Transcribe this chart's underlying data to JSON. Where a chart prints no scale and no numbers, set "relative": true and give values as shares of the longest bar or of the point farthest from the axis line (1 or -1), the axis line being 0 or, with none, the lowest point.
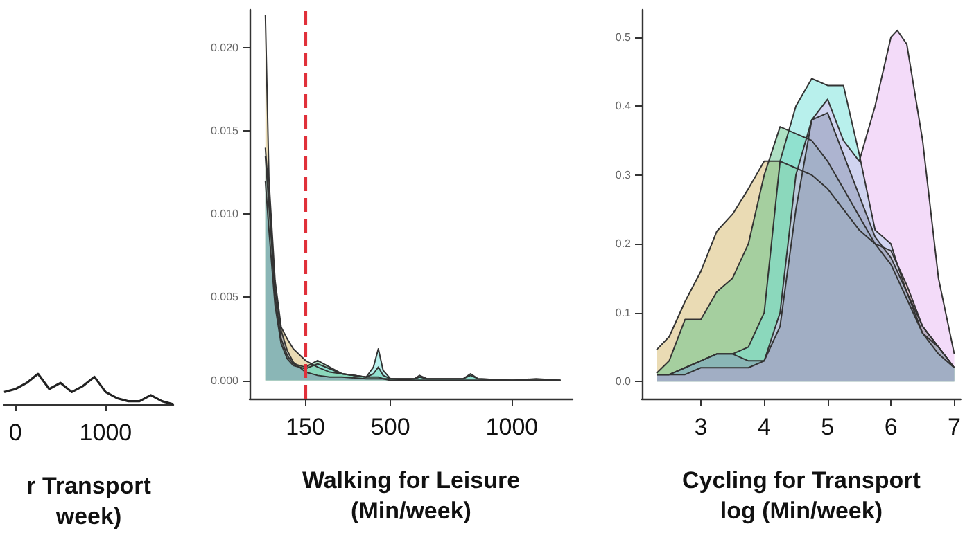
{
  "chart_data": [
    {
      "type": "line",
      "relative": true,
      "xlabel": "r Transport\nweek)",
      "tick_labels": "x",
      "categories": [
        null,
        "0",
        null,
        null,
        null,
        null,
        null,
        null,
        null,
        "1000",
        null,
        null,
        null,
        null,
        null,
        null
      ],
      "series": [
        {
          "color": "#222222",
          "values": [
            0.4,
            0.5,
            0.7,
            1.0,
            0.5,
            0.7,
            0.4,
            0.6,
            0.9,
            0.4,
            0.2,
            0.1,
            0.1,
            0.3,
            0.1,
            0
          ]
        }
      ]
    },
    {
      "type": "area",
      "xlabel": "Walking for Leisure\n(Min/week)",
      "xlim": [
        -80,
        1250
      ],
      "xticks": [
        150,
        500,
        1000
      ],
      "ylim": [
        -0.0011,
        0.0223
      ],
      "yticks": [
        {
          "value": 0,
          "label": "0.000"
        },
        {
          "value": 0.005,
          "label": "0.005"
        },
        {
          "value": 0.01,
          "label": "0.010"
        },
        {
          "value": 0.015,
          "label": "0.015"
        },
        {
          "value": 0.02,
          "label": "0.020"
        }
      ],
      "x": [
        -15,
        0,
        25,
        50,
        75,
        100,
        150,
        200,
        250,
        300,
        400,
        430,
        450,
        470,
        500,
        600,
        620,
        650,
        800,
        830,
        860,
        1000,
        1100,
        1200
      ],
      "series": [
        {
          "color": "#d6b86a",
          "values": [
            0.022,
            0.012,
            0.006,
            0.0032,
            0.0025,
            0.0019,
            0.0012,
            0.0008,
            0.0005,
            0.0004,
            0.0002,
            0.0002,
            0.0002,
            0.0001,
            0.0001,
            0,
            0,
            0,
            0,
            0,
            0,
            0,
            0.0001,
            0
          ]
        },
        {
          "color": "#5fc48a",
          "values": [
            0.014,
            0.011,
            0.005,
            0.0025,
            0.0015,
            0.001,
            0.0008,
            0.0012,
            0.0008,
            0.0004,
            0.0002,
            0.0004,
            0.0008,
            0.0003,
            0.0001,
            0.0001,
            0.0002,
            0.0001,
            0.0001,
            0.0003,
            0.0001,
            0,
            0,
            0
          ]
        },
        {
          "color": "#72e2da",
          "values": [
            0.012,
            0.009,
            0.0045,
            0.0022,
            0.0013,
            0.0009,
            0.0007,
            0.001,
            0.0007,
            0.0004,
            0.0002,
            0.0008,
            0.0019,
            0.0006,
            0.0001,
            0.0001,
            0.0003,
            0.0001,
            0.0001,
            0.0004,
            0.0001,
            0,
            0,
            0
          ]
        },
        {
          "color": "#8a94b0",
          "values": [
            0.0135,
            0.0105,
            0.0055,
            0.003,
            0.0018,
            0.0011,
            0.0005,
            0.0003,
            0.0002,
            0.0002,
            0.0001,
            0.0001,
            0.0001,
            0.0001,
            0,
            0,
            0,
            0,
            0,
            0,
            0,
            0,
            0,
            0
          ]
        }
      ],
      "ref_lines": [
        {
          "axis": "x",
          "value": 150,
          "color": "#e0303a",
          "line_style": "dashed"
        }
      ]
    },
    {
      "type": "area",
      "xlabel": "Cycling for Transport\nlog (Min/week)",
      "xlim": [
        2.07,
        7.1
      ],
      "xticks": [
        3,
        4,
        5,
        6,
        7
      ],
      "ylim": [
        -0.025,
        0.54
      ],
      "yticks": [
        {
          "value": 0,
          "label": "0.0"
        },
        {
          "value": 0.1,
          "label": "0.1"
        },
        {
          "value": 0.2,
          "label": "0.2"
        },
        {
          "value": 0.3,
          "label": "0.3"
        },
        {
          "value": 0.4,
          "label": "0.4"
        },
        {
          "value": 0.5,
          "label": "0.5"
        }
      ],
      "x": [
        2.3,
        2.5,
        2.75,
        3,
        3.25,
        3.5,
        3.75,
        4,
        4.25,
        4.5,
        4.75,
        5,
        5.25,
        5.5,
        5.75,
        6,
        6.1,
        6.25,
        6.5,
        6.75,
        7
      ],
      "series": [
        {
          "color": "#d6b86a",
          "values": [
            0.046,
            0.065,
            0.116,
            0.16,
            0.218,
            0.243,
            0.28,
            0.32,
            0.32,
            0.31,
            0.3,
            0.28,
            0.25,
            0.22,
            0.2,
            0.19,
            0.17,
            0.14,
            0.08,
            0.05,
            0.02
          ]
        },
        {
          "color": "#5fc48a",
          "values": [
            0.012,
            0.03,
            0.09,
            0.09,
            0.13,
            0.15,
            0.2,
            0.3,
            0.37,
            0.36,
            0.35,
            0.32,
            0.28,
            0.24,
            0.2,
            0.17,
            0.15,
            0.12,
            0.07,
            0.05,
            0.02
          ]
        },
        {
          "color": "#72e2da",
          "values": [
            0.01,
            0.01,
            0.02,
            0.03,
            0.04,
            0.04,
            0.05,
            0.1,
            0.32,
            0.4,
            0.44,
            0.43,
            0.43,
            0.33,
            0.22,
            0.2,
            0.17,
            0.13,
            0.07,
            0.04,
            0.02
          ]
        },
        {
          "color": "#e8b8f4",
          "values": [
            0.01,
            0.01,
            0.01,
            0.02,
            0.02,
            0.02,
            0.02,
            0.03,
            0.1,
            0.3,
            0.38,
            0.41,
            0.35,
            0.32,
            0.4,
            0.5,
            0.51,
            0.49,
            0.35,
            0.15,
            0.04
          ]
        },
        {
          "color": "#8a94b0",
          "values": [
            0.01,
            0.01,
            0.02,
            0.03,
            0.04,
            0.04,
            0.03,
            0.03,
            0.08,
            0.25,
            0.38,
            0.39,
            0.33,
            0.27,
            0.21,
            0.18,
            0.16,
            0.13,
            0.08,
            0.05,
            0.02
          ]
        }
      ]
    }
  ]
}
